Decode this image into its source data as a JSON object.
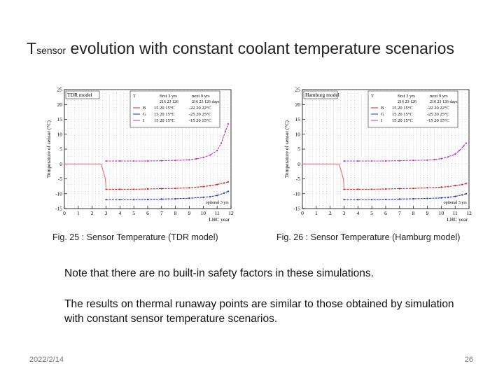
{
  "slide": {
    "title_main": "T",
    "title_sub": "sensor",
    "title_rest": " evolution with constant coolant temperature scenarios",
    "captions": [
      "Fig. 25 : Sensor Temperature (TDR model)",
      "Fig. 26 : Sensor Temperature (Hamburg model)"
    ],
    "note1": "Note that there are no built-in safety factors in these simulations.",
    "note2": "The results on thermal runaway points are similar to those obtained by simulation with constant sensor temperature scenarios.",
    "date": "2022/2/14",
    "page": "26"
  },
  "colors": {
    "B": "#d42020",
    "G": "#2030c0",
    "I": "#c030c0",
    "initial": "#e07070"
  },
  "chart_data": [
    {
      "type": "line",
      "model_label": "TDR model",
      "xlabel": "LHC year",
      "ylabel": "Temperature of sensor (°C)",
      "xlim": [
        0,
        12
      ],
      "ylim": [
        -15,
        25
      ],
      "xticks": [
        0,
        1,
        2,
        3,
        4,
        5,
        6,
        7,
        8,
        9,
        10,
        11,
        12
      ],
      "yticks": [
        -15,
        -10,
        -5,
        0,
        5,
        10,
        15,
        20,
        25
      ],
      "legend": {
        "header": [
          "T",
          "first 3 yrs",
          "next 9 yrs"
        ],
        "subheader": [
          "",
          "216  23  126",
          "216  23  126 days"
        ],
        "rows": [
          {
            "name": "B",
            "first": "15  20  15°C",
            "next": "-22  20  22°C"
          },
          {
            "name": "G",
            "first": "15  20  15°C",
            "next": "-25  20  25°C"
          },
          {
            "name": "I",
            "first": "15  20  15°C",
            "next": "-15  20  15°C"
          }
        ]
      },
      "annotation": "optional 3 yrs",
      "initial": {
        "x": [
          0,
          2.65,
          2.95,
          3.0
        ],
        "y": [
          0.0,
          0.0,
          -5.0,
          -8.0
        ]
      },
      "series": [
        {
          "name": "I",
          "x": [
            3,
            4,
            5,
            6,
            7,
            8,
            9,
            9.5,
            10,
            10.5,
            11,
            11.3,
            11.6,
            11.8
          ],
          "y": [
            1.0,
            1.0,
            1.0,
            1.0,
            1.1,
            1.2,
            1.4,
            1.7,
            2.2,
            3.0,
            4.5,
            7.0,
            11.0,
            13.5
          ]
        },
        {
          "name": "B",
          "x": [
            3,
            4,
            5,
            6,
            7,
            8,
            9,
            10,
            10.5,
            11,
            11.5,
            11.8
          ],
          "y": [
            -8.5,
            -8.5,
            -8.5,
            -8.4,
            -8.3,
            -8.2,
            -8.0,
            -7.6,
            -7.3,
            -6.9,
            -6.4,
            -6.0
          ]
        },
        {
          "name": "G",
          "x": [
            3,
            4,
            5,
            6,
            7,
            8,
            9,
            10,
            10.5,
            11,
            11.5,
            11.8
          ],
          "y": [
            -12.0,
            -12.0,
            -12.0,
            -11.9,
            -11.8,
            -11.7,
            -11.5,
            -11.2,
            -11.0,
            -10.6,
            -9.8,
            -9.2
          ]
        }
      ]
    },
    {
      "type": "line",
      "model_label": "Hamburg model",
      "xlabel": "LHC year",
      "ylabel": "Temperature of sensor (°C)",
      "xlim": [
        0,
        12
      ],
      "ylim": [
        -15,
        25
      ],
      "xticks": [
        0,
        1,
        2,
        3,
        4,
        5,
        6,
        7,
        8,
        9,
        10,
        11,
        12
      ],
      "yticks": [
        -15,
        -10,
        -5,
        0,
        5,
        10,
        15,
        20,
        25
      ],
      "legend": {
        "header": [
          "T",
          "first 3 yrs",
          "next 9 yrs"
        ],
        "subheader": [
          "",
          "216  23  126",
          "216  23  126 days"
        ],
        "rows": [
          {
            "name": "B",
            "first": "15  20  15°C",
            "next": "-22  20  22°C"
          },
          {
            "name": "G",
            "first": "15  20  15°C",
            "next": "-25  20  25°C"
          },
          {
            "name": "I",
            "first": "15  20  15°C",
            "next": "-15  20  15°C"
          }
        ]
      },
      "annotation": "optional 3 yrs",
      "initial": {
        "x": [
          0,
          2.65,
          2.95,
          3.0
        ],
        "y": [
          0.0,
          0.0,
          -5.0,
          -8.0
        ]
      },
      "series": [
        {
          "name": "I",
          "x": [
            3,
            4,
            5,
            6,
            7,
            8,
            9,
            9.5,
            10,
            10.5,
            11,
            11.3,
            11.6,
            11.8
          ],
          "y": [
            1.0,
            1.0,
            1.0,
            1.0,
            1.1,
            1.2,
            1.3,
            1.5,
            1.8,
            2.4,
            3.3,
            4.5,
            6.0,
            7.0
          ]
        },
        {
          "name": "B",
          "x": [
            3,
            4,
            5,
            6,
            7,
            8,
            9,
            10,
            10.5,
            11,
            11.5,
            11.8
          ],
          "y": [
            -8.5,
            -8.5,
            -8.5,
            -8.4,
            -8.3,
            -8.2,
            -8.0,
            -7.8,
            -7.6,
            -7.3,
            -6.9,
            -6.6
          ]
        },
        {
          "name": "G",
          "x": [
            3,
            4,
            5,
            6,
            7,
            8,
            9,
            10,
            10.5,
            11,
            11.5,
            11.8
          ],
          "y": [
            -12.0,
            -12.0,
            -12.0,
            -11.9,
            -11.8,
            -11.7,
            -11.6,
            -11.4,
            -11.2,
            -10.9,
            -10.4,
            -10.0
          ]
        }
      ]
    }
  ]
}
